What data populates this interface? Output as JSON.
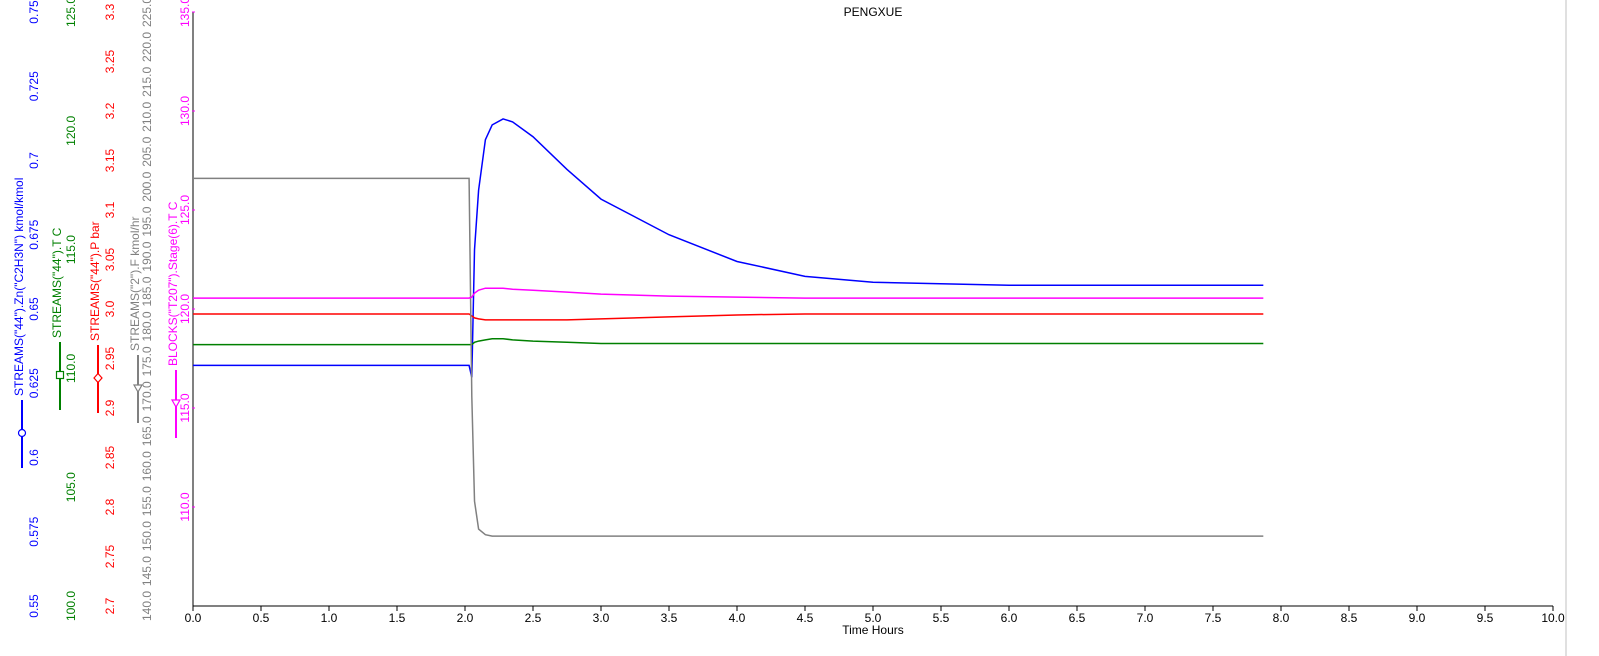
{
  "chart_data": {
    "type": "line",
    "title": "PENGXUE",
    "x_label": "Time Hours",
    "xlim": [
      0,
      10
    ],
    "xticks": [
      {
        "value": 0,
        "label": "0.0"
      },
      0.5,
      {
        "value": 1,
        "label": "1.0"
      },
      1.5,
      {
        "value": 2,
        "label": "2.0"
      },
      2.5,
      {
        "value": 3,
        "label": "3.0"
      },
      3.5,
      {
        "value": 4,
        "label": "4.0"
      },
      4.5,
      {
        "value": 5,
        "label": "5.0"
      },
      5.5,
      {
        "value": 6,
        "label": "6.0"
      },
      6.5,
      {
        "value": 7,
        "label": "7.0"
      },
      7.5,
      {
        "value": 8,
        "label": "8.0"
      },
      8.5,
      {
        "value": 9,
        "label": "9.0"
      },
      9.5,
      {
        "value": 10,
        "label": "10.0"
      }
    ],
    "x": [
      0,
      2.03,
      2.05,
      2.07,
      2.1,
      2.15,
      2.2,
      2.28,
      2.35,
      2.5,
      2.75,
      3.0,
      3.5,
      4.0,
      4.5,
      5.0,
      6.0,
      7.0,
      7.87
    ],
    "series": [
      {
        "name": "STREAMS(\"44\").Zn(\"C2H3N\") kmol/kmol",
        "color": "#0000ff",
        "marker": "circle",
        "ylim": [
          0.55,
          0.75
        ],
        "yticks": [
          0.55,
          0.575,
          0.6,
          0.625,
          0.65,
          0.675,
          0.7,
          0.725,
          0.75
        ],
        "values": [
          0.631,
          0.631,
          0.627,
          0.67,
          0.69,
          0.707,
          0.712,
          0.714,
          0.713,
          0.708,
          0.697,
          0.687,
          0.675,
          0.666,
          0.661,
          0.659,
          0.658,
          0.658,
          0.658
        ]
      },
      {
        "name": "STREAMS(\"44\").T C",
        "color": "#008000",
        "marker": "square",
        "ylim": [
          100,
          125
        ],
        "yticks": [
          {
            "value": 100,
            "label": "100.0"
          },
          {
            "value": 105,
            "label": "105.0"
          },
          {
            "value": 110,
            "label": "110.0"
          },
          {
            "value": 115,
            "label": "115.0"
          },
          {
            "value": 120,
            "label": "120.0"
          },
          {
            "value": 125,
            "label": "125.0"
          }
        ],
        "values": [
          111.0,
          111.0,
          111.0,
          111.1,
          111.15,
          111.2,
          111.25,
          111.25,
          111.2,
          111.15,
          111.1,
          111.05,
          111.05,
          111.05,
          111.05,
          111.05,
          111.05,
          111.05,
          111.05
        ]
      },
      {
        "name": "STREAMS(\"44\").P bar",
        "color": "#ff0000",
        "marker": "diamond",
        "ylim": [
          2.7,
          3.3
        ],
        "yticks": [
          2.7,
          2.75,
          2.8,
          2.85,
          2.9,
          2.95,
          {
            "value": 3.0,
            "label": "3.0"
          },
          3.05,
          3.1,
          3.15,
          3.2,
          3.25,
          3.3
        ],
        "values": [
          2.995,
          2.995,
          2.993,
          2.991,
          2.99,
          2.989,
          2.989,
          2.989,
          2.989,
          2.989,
          2.989,
          2.99,
          2.992,
          2.994,
          2.995,
          2.995,
          2.995,
          2.995,
          2.995
        ]
      },
      {
        "name": "STREAMS(\"2\").F kmol/hr",
        "color": "#808080",
        "marker": "triangle",
        "ylim": [
          140,
          225
        ],
        "yticks": [
          {
            "value": 140,
            "label": "140.0"
          },
          {
            "value": 145,
            "label": "145.0"
          },
          {
            "value": 150,
            "label": "150.0"
          },
          {
            "value": 155,
            "label": "155.0"
          },
          {
            "value": 160,
            "label": "160.0"
          },
          {
            "value": 165,
            "label": "165.0"
          },
          {
            "value": 170,
            "label": "170.0"
          },
          {
            "value": 175,
            "label": "175.0"
          },
          {
            "value": 180,
            "label": "180.0"
          },
          {
            "value": 185,
            "label": "185.0"
          },
          {
            "value": 190,
            "label": "190.0"
          },
          {
            "value": 195,
            "label": "195.0"
          },
          {
            "value": 200,
            "label": "200.0"
          },
          {
            "value": 205,
            "label": "205.0"
          },
          {
            "value": 210,
            "label": "210.0"
          },
          {
            "value": 215,
            "label": "215.0"
          },
          {
            "value": 220,
            "label": "220.0"
          },
          {
            "value": 225,
            "label": "225.0"
          }
        ],
        "values": [
          201.2,
          201.2,
          170.0,
          155.0,
          151.0,
          150.2,
          150.0,
          150.0,
          150.0,
          150.0,
          150.0,
          150.0,
          150.0,
          150.0,
          150.0,
          150.0,
          150.0,
          150.0,
          150.0
        ]
      },
      {
        "name": "BLOCKS(\"T207\").Stage(6).T C",
        "color": "#ff00ff",
        "marker": "triangle",
        "ylim": [
          105,
          135
        ],
        "yticks": [
          {
            "value": 110,
            "label": "110.0"
          },
          {
            "value": 115,
            "label": "115.0"
          },
          {
            "value": 120,
            "label": "120.0"
          },
          {
            "value": 125,
            "label": "125.0"
          },
          {
            "value": 130,
            "label": "130.0"
          },
          {
            "value": 135,
            "label": "135.0"
          }
        ],
        "values": [
          120.55,
          120.55,
          120.6,
          120.8,
          120.95,
          121.05,
          121.05,
          121.05,
          121.0,
          120.95,
          120.85,
          120.75,
          120.65,
          120.6,
          120.55,
          120.55,
          120.55,
          120.55,
          120.55
        ]
      }
    ]
  }
}
